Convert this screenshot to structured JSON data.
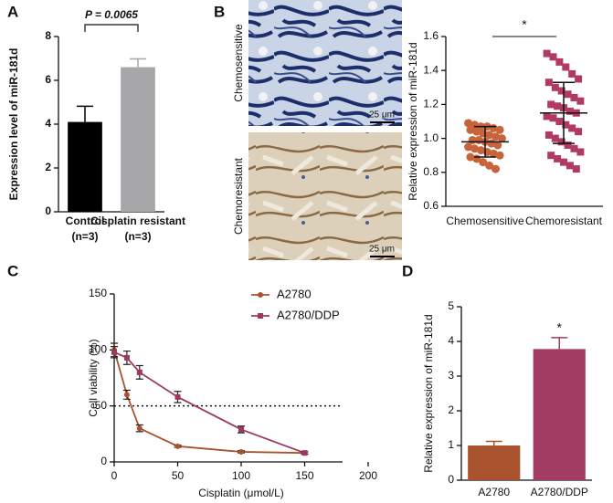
{
  "micrographs": [
    {
      "label": "Chemosensitive",
      "scale_bar": "25 μm"
    },
    {
      "label": "Chemoresistant",
      "scale_bar": "25 μm"
    }
  ],
  "chart_data": [
    {
      "type": "bar",
      "panel": "A",
      "ylabel": "Expression level of miR-181d",
      "categories": [
        "Control",
        "Cisplatin resistant"
      ],
      "category_notes": [
        "(n=3)",
        "(n=3)"
      ],
      "values": [
        4.1,
        6.6
      ],
      "errors": [
        0.72,
        0.38
      ],
      "colors": [
        "#000000",
        "#a7a7a9"
      ],
      "ylim": [
        0,
        8
      ],
      "yticks": [
        0,
        2,
        4,
        6,
        8
      ],
      "annotation": "P = 0.0065"
    },
    {
      "type": "strip",
      "panel": "B",
      "ylabel": "Relative expression of miR-181d",
      "categories": [
        "Chemosensitive",
        "Chemoresistant"
      ],
      "groups": [
        {
          "color": "#c8643c",
          "marker": "circle",
          "mean": 0.98,
          "sd": 0.09,
          "values": [
            1.09,
            1.08,
            1.07,
            1.07,
            1.06,
            1.05,
            1.05,
            1.04,
            1.03,
            1.02,
            1.01,
            1.0,
            0.99,
            0.99,
            0.98,
            0.97,
            0.96,
            0.95,
            0.94,
            0.93,
            0.92,
            0.91,
            0.9,
            0.89,
            0.88,
            0.86,
            0.84,
            0.82
          ]
        },
        {
          "color": "#b03a63",
          "marker": "square",
          "mean": 1.15,
          "sd": 0.18,
          "values": [
            1.5,
            1.48,
            1.45,
            1.42,
            1.38,
            1.35,
            1.33,
            1.3,
            1.28,
            1.26,
            1.24,
            1.22,
            1.2,
            1.19,
            1.18,
            1.16,
            1.15,
            1.13,
            1.12,
            1.1,
            1.08,
            1.06,
            1.04,
            1.02,
            1.0,
            0.98,
            0.96,
            0.94,
            0.92,
            0.9,
            0.88,
            0.86,
            0.84,
            0.82
          ]
        }
      ],
      "ylim": [
        0.6,
        1.6
      ],
      "yticks": [
        0.6,
        0.8,
        {
          "value": 1,
          "label": "1.0"
        },
        1.2,
        1.4,
        1.6
      ],
      "annotation": "*"
    },
    {
      "type": "line",
      "panel": "C",
      "xlabel": "Cisplatin (μmol/L)",
      "ylabel": "Cell viability (%)",
      "x": [
        0,
        10,
        20,
        50,
        100,
        150
      ],
      "series": [
        {
          "name": "A2780",
          "color": "#a9532e",
          "marker": "circle",
          "values": [
            100,
            60,
            30,
            14,
            9,
            8
          ],
          "errors": [
            6,
            4,
            3,
            1,
            1,
            1
          ]
        },
        {
          "name": "A2780/DDP",
          "color": "#9b3a5e",
          "marker": "square",
          "values": [
            98,
            93,
            80,
            58,
            29,
            8
          ],
          "errors": [
            5,
            6,
            6,
            5,
            3,
            1
          ]
        }
      ],
      "xlim": [
        0,
        200
      ],
      "xticks": [
        0,
        50,
        100,
        150,
        200
      ],
      "ylim": [
        0,
        150
      ],
      "yticks": [
        0,
        50,
        100,
        150
      ],
      "reference_line": 50,
      "legend": "upper right"
    },
    {
      "type": "bar",
      "panel": "D",
      "ylabel": "Relative expression of miR-181d",
      "categories": [
        "A2780",
        "A2780/DDP"
      ],
      "values": [
        1.0,
        3.78
      ],
      "errors": [
        0.12,
        0.33
      ],
      "colors": [
        "#a9532e",
        "#a33c63"
      ],
      "ylim": [
        0,
        5
      ],
      "yticks": [
        0,
        1,
        2,
        3,
        4,
        5
      ],
      "annotation": "*"
    }
  ]
}
